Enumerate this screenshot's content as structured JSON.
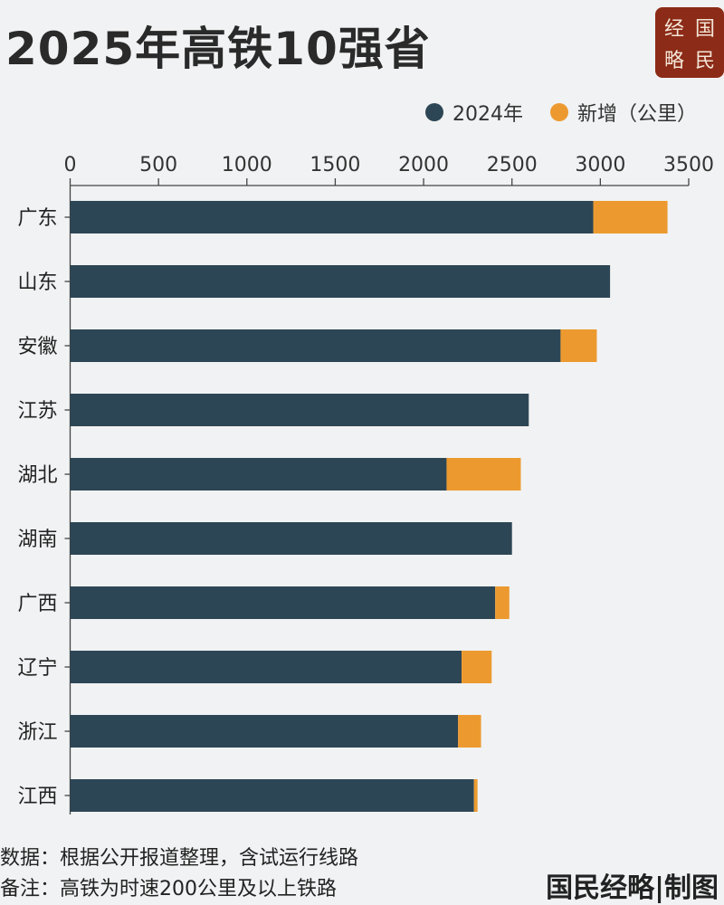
{
  "title": "2025年高铁10强省",
  "logo": {
    "chars": [
      "经",
      "国",
      "略",
      "民"
    ]
  },
  "brand_credit": "国民经略|制图",
  "notes": [
    "数据：根据公开报道整理，含试运行线路",
    "备注：高铁为时速200公里及以上铁路"
  ],
  "colors": {
    "base": "#2d4655",
    "added": "#ec9a2f",
    "logo_bg": "#8c2b17"
  },
  "chart_data": {
    "type": "bar",
    "orientation": "horizontal",
    "stacked": true,
    "categories": [
      "广东",
      "山东",
      "安徽",
      "江苏",
      "湖北",
      "湖南",
      "广西",
      "辽宁",
      "浙江",
      "江西"
    ],
    "series": [
      {
        "name": "2024年",
        "values": [
          2960,
          3055,
          2775,
          2595,
          2130,
          2500,
          2405,
          2215,
          2195,
          2285
        ]
      },
      {
        "name": "新增（公里）",
        "values": [
          420,
          0,
          205,
          0,
          420,
          0,
          80,
          170,
          130,
          20
        ]
      }
    ],
    "xlim": [
      0,
      3500
    ],
    "xticks": [
      0,
      500,
      1000,
      1500,
      2000,
      2500,
      3000,
      3500
    ],
    "axis_position": "top",
    "legend_position": "top-right",
    "grid": false
  }
}
